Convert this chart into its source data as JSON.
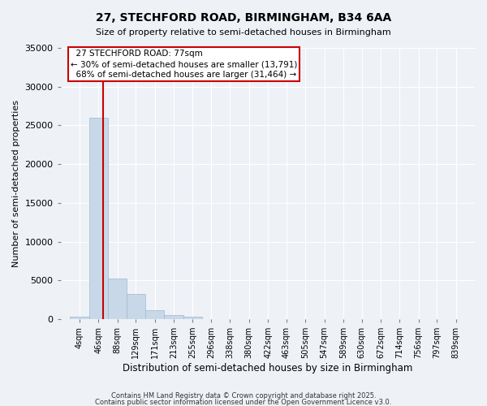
{
  "title1": "27, STECHFORD ROAD, BIRMINGHAM, B34 6AA",
  "title2": "Size of property relative to semi-detached houses in Birmingham",
  "xlabel": "Distribution of semi-detached houses by size in Birmingham",
  "ylabel": "Number of semi-detached properties",
  "bin_labels": [
    "4sqm",
    "46sqm",
    "88sqm",
    "129sqm",
    "171sqm",
    "213sqm",
    "255sqm",
    "296sqm",
    "338sqm",
    "380sqm",
    "422sqm",
    "463sqm",
    "505sqm",
    "547sqm",
    "589sqm",
    "630sqm",
    "672sqm",
    "714sqm",
    "756sqm",
    "797sqm",
    "839sqm"
  ],
  "bin_edges": [
    4,
    46,
    88,
    129,
    171,
    213,
    255,
    296,
    338,
    380,
    422,
    463,
    505,
    547,
    589,
    630,
    672,
    714,
    756,
    797,
    839
  ],
  "bar_heights": [
    350,
    26000,
    5200,
    3200,
    1100,
    500,
    300,
    0,
    0,
    0,
    0,
    0,
    0,
    0,
    0,
    0,
    0,
    0,
    0,
    0
  ],
  "bar_color": "#c8d8e8",
  "bar_edgecolor": "#a0b8d0",
  "property_size": 77,
  "property_label": "27 STECHFORD ROAD: 77sqm",
  "pct_smaller": 30,
  "count_smaller": 13791,
  "pct_larger": 68,
  "count_larger": 31464,
  "vline_color": "#cc0000",
  "ylim": [
    0,
    35000
  ],
  "yticks": [
    0,
    5000,
    10000,
    15000,
    20000,
    25000,
    30000,
    35000
  ],
  "background_color": "#eef2f7",
  "footer1": "Contains HM Land Registry data © Crown copyright and database right 2025.",
  "footer2": "Contains public sector information licensed under the Open Government Licence v3.0."
}
